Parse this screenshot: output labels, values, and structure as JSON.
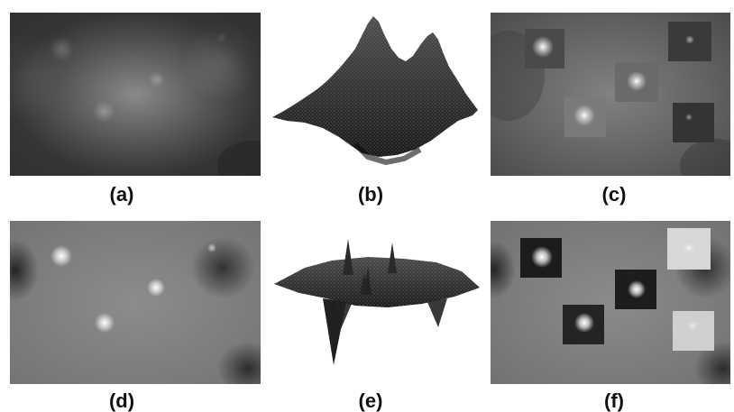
{
  "figure": {
    "captions": {
      "a": "(a)",
      "b": "(b)",
      "c": "(c)",
      "d": "(d)",
      "e": "(e)",
      "f": "(f)"
    }
  }
}
